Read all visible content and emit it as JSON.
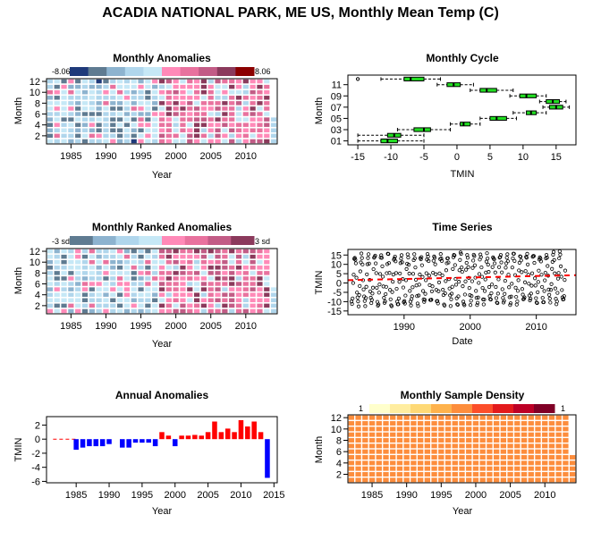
{
  "title": "ACADIA NATIONAL PARK, ME US, Monthly Mean Temp (C)",
  "panels": {
    "anomalies": {
      "title": "Monthly Anomalies",
      "xlabel": "Year",
      "ylabel": "Month",
      "x_ticks": [
        "1985",
        "1990",
        "1995",
        "2000",
        "2005",
        "2010"
      ],
      "y_ticks": [
        "2",
        "4",
        "6",
        "8",
        "10",
        "12"
      ],
      "legend_min": "-8.06",
      "legend_max": "8.06",
      "legend_colors": [
        "#1f3a7a",
        "#5f7b91",
        "#8db3cf",
        "#b0d6ec",
        "#c6e8f6",
        "#ff8ab8",
        "#e8729e",
        "#c25c86",
        "#8b3a5c",
        "#8b0000"
      ]
    },
    "cycle": {
      "title": "Monthly Cycle",
      "xlabel": "TMIN",
      "ylabel": "Month",
      "x_ticks": [
        "-15",
        "-10",
        "-5",
        "0",
        "5",
        "10",
        "15"
      ],
      "y_ticks": [
        "01",
        "03",
        "05",
        "07",
        "09",
        "11"
      ],
      "box_color": "#22dd22"
    },
    "ranked": {
      "title": "Monthly Ranked Anomalies",
      "xlabel": "Year",
      "ylabel": "Month",
      "x_ticks": [
        "1985",
        "1990",
        "1995",
        "2000",
        "2005",
        "2010"
      ],
      "y_ticks": [
        "2",
        "4",
        "6",
        "8",
        "10",
        "12"
      ],
      "legend_min": "-3 sd",
      "legend_max": "3 sd",
      "legend_colors": [
        "#5f7b91",
        "#8db3cf",
        "#b0d6ec",
        "#c6e8f6",
        "#ff8ab8",
        "#e8729e",
        "#c25c86",
        "#8b3a5c"
      ]
    },
    "timeseries": {
      "title": "Time Series",
      "xlabel": "Date",
      "ylabel": "TMIN",
      "x_ticks": [
        "1990",
        "2000",
        "2010"
      ],
      "y_ticks": [
        "-15",
        "-10",
        "-5",
        "0",
        "5",
        "10",
        "15"
      ]
    },
    "annual": {
      "title": "Annual Anomalies",
      "xlabel": "Year",
      "ylabel": "TMIN",
      "x_ticks": [
        "1985",
        "1990",
        "1995",
        "2000",
        "2005",
        "2010",
        "2015"
      ],
      "y_ticks": [
        "-6",
        "-4",
        "-2",
        "0",
        "2"
      ]
    },
    "density": {
      "title": "Monthly Sample Density",
      "xlabel": "Year",
      "ylabel": "Month",
      "x_ticks": [
        "1985",
        "1990",
        "1995",
        "2000",
        "2005",
        "2010"
      ],
      "y_ticks": [
        "2",
        "4",
        "6",
        "8",
        "10",
        "12"
      ],
      "legend_min": "1",
      "legend_max": "1",
      "legend_colors": [
        "#ffffcc",
        "#ffeda0",
        "#fed976",
        "#feb24c",
        "#fd8d3c",
        "#fc4e2a",
        "#e31a1c",
        "#bd0026",
        "#800026"
      ],
      "cell_color": "#fd8d3c"
    }
  },
  "chart_data": [
    {
      "type": "heatmap",
      "title": "Monthly Anomalies",
      "xlabel": "Year",
      "ylabel": "Month",
      "xlim": [
        1981.5,
        2014.5
      ],
      "ylim": [
        0.5,
        12.5
      ],
      "years": [
        1982,
        2014
      ],
      "months": [
        1,
        12
      ],
      "color_range": [
        -8.06,
        8.06
      ],
      "pattern": "cool (negative) anomalies dominate 1982-1997, warm (positive) anomalies dominate 1998-2013, 2014 partial year"
    },
    {
      "type": "box",
      "title": "Monthly Cycle",
      "xlabel": "TMIN",
      "ylabel": "Month",
      "xlim": [
        -16.5,
        18
      ],
      "months": [
        "01",
        "02",
        "03",
        "04",
        "05",
        "06",
        "07",
        "08",
        "09",
        "10",
        "11",
        "12"
      ],
      "boxes": [
        {
          "month": 1,
          "whisker_low": -15,
          "q1": -11.5,
          "median": -10.5,
          "q3": -9,
          "whisker_high": -5,
          "outliers": []
        },
        {
          "month": 2,
          "whisker_low": -15,
          "q1": -10.5,
          "median": -9.5,
          "q3": -8.5,
          "whisker_high": -5,
          "outliers": []
        },
        {
          "month": 3,
          "whisker_low": -9,
          "q1": -6.5,
          "median": -5,
          "q3": -4,
          "whisker_high": -1,
          "outliers": []
        },
        {
          "month": 4,
          "whisker_low": -1,
          "q1": 0.5,
          "median": 1,
          "q3": 2,
          "whisker_high": 3.5,
          "outliers": []
        },
        {
          "month": 5,
          "whisker_low": 3.5,
          "q1": 5,
          "median": 6,
          "q3": 7.5,
          "whisker_high": 9,
          "outliers": []
        },
        {
          "month": 6,
          "whisker_low": 8.5,
          "q1": 10.5,
          "median": 11.2,
          "q3": 12,
          "whisker_high": 13.5,
          "outliers": []
        },
        {
          "month": 7,
          "whisker_low": 13,
          "q1": 14,
          "median": 15,
          "q3": 16,
          "whisker_high": 17,
          "outliers": []
        },
        {
          "month": 8,
          "whisker_low": 12.5,
          "q1": 13.5,
          "median": 14.5,
          "q3": 15.5,
          "whisker_high": 16.5,
          "outliers": []
        },
        {
          "month": 9,
          "whisker_low": 8,
          "q1": 9.5,
          "median": 10.5,
          "q3": 12,
          "whisker_high": 13.5,
          "outliers": []
        },
        {
          "month": 10,
          "whisker_low": 2,
          "q1": 3.5,
          "median": 4.5,
          "q3": 6,
          "whisker_high": 8.5,
          "outliers": []
        },
        {
          "month": 11,
          "whisker_low": -3,
          "q1": -1.5,
          "median": -0.5,
          "q3": 0.5,
          "whisker_high": 2.5,
          "outliers": []
        },
        {
          "month": 12,
          "whisker_low": -11.5,
          "q1": -8,
          "median": -7,
          "q3": -5,
          "whisker_high": -2.5,
          "outliers": [
            -15
          ]
        }
      ]
    },
    {
      "type": "heatmap",
      "title": "Monthly Ranked Anomalies",
      "xlabel": "Year",
      "ylabel": "Month",
      "xlim": [
        1981.5,
        2014.5
      ],
      "ylim": [
        0.5,
        12.5
      ],
      "years": [
        1982,
        2014
      ],
      "months": [
        1,
        12
      ],
      "color_range": [
        -3,
        3
      ],
      "color_units": "sd"
    },
    {
      "type": "scatter",
      "title": "Time Series",
      "xlabel": "Date",
      "ylabel": "TMIN",
      "xlim": [
        1981.5,
        2016
      ],
      "ylim": [
        -17,
        18
      ],
      "period": [
        1982,
        2014
      ],
      "description": "monthly TMIN values oscillating seasonally roughly between -15 and 17",
      "trend_line": {
        "x": [
          1981.5,
          2016
        ],
        "y": [
          1.5,
          4.2
        ],
        "color": "#ff0000",
        "style": "dashed"
      }
    },
    {
      "type": "bar",
      "title": "Annual Anomalies",
      "xlabel": "Year",
      "ylabel": "TMIN",
      "xlim": [
        1980.5,
        2015.5
      ],
      "ylim": [
        -6.2,
        3.2
      ],
      "categories": [
        1982,
        1983,
        1984,
        1985,
        1986,
        1987,
        1988,
        1989,
        1990,
        1991,
        1992,
        1993,
        1994,
        1995,
        1996,
        1997,
        1998,
        1999,
        2000,
        2001,
        2002,
        2003,
        2004,
        2005,
        2006,
        2007,
        2008,
        2009,
        2010,
        2011,
        2012,
        2013,
        2014
      ],
      "values": [
        0.0,
        0.0,
        0.0,
        -1.5,
        -1.2,
        -1.0,
        -1.0,
        -1.0,
        -0.7,
        0.0,
        -1.2,
        -1.2,
        -0.5,
        -0.5,
        -0.5,
        -1.0,
        1.0,
        0.5,
        -1.0,
        0.5,
        0.5,
        0.6,
        0.5,
        1.0,
        2.5,
        1.0,
        1.5,
        1.0,
        2.7,
        1.8,
        2.5,
        1.0,
        -5.5
      ],
      "positive_color": "#ff0000",
      "negative_color": "#0000ff",
      "baseline": {
        "y": 0,
        "color": "#ff0000",
        "style": "dashed",
        "x": [
          1981.5,
          1985
        ]
      }
    },
    {
      "type": "heatmap",
      "title": "Monthly Sample Density",
      "xlabel": "Year",
      "ylabel": "Month",
      "xlim": [
        1981.5,
        2014.5
      ],
      "ylim": [
        0.5,
        12.5
      ],
      "years": [
        1982,
        2014
      ],
      "months": [
        1,
        12
      ],
      "value": 1,
      "note": "every month 1982-2013 present; 2014 has months 1-5 only"
    }
  ]
}
